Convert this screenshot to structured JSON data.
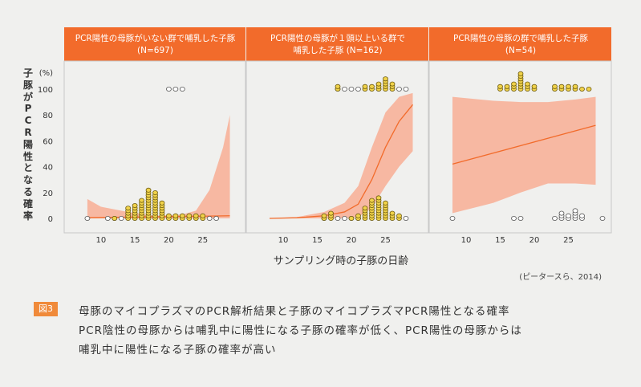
{
  "figure": {
    "ylabel_chars": [
      "子",
      "豚",
      "が",
      "P",
      "C",
      "R",
      "陽",
      "性",
      "と",
      "な",
      "る",
      "確",
      "率"
    ],
    "yunit": "(%)",
    "xtitle": "サンプリング時の子豚の日齢",
    "citation": "(ピータースら、2014)"
  },
  "colors": {
    "header_bg": "#f26b2b",
    "band": "#f7b8a2",
    "line": "#f26b2b",
    "dot_fill": "#f0d24a",
    "dot_stroke": "#6b5a10",
    "axis_frame": "#c8c8c8"
  },
  "chart_data": [
    {
      "type": "scatter",
      "title": "PCR陽性の母豚がいない群で哺乳した子豚",
      "subtitle": "(N=697)",
      "xlim": [
        6,
        30
      ],
      "ylim": [
        0,
        100
      ],
      "xticks": [
        10,
        15,
        20,
        25
      ],
      "yticks": [
        0,
        20,
        40,
        60,
        80,
        100
      ],
      "fitted_line": {
        "x": [
          8,
          29
        ],
        "y": [
          0.5,
          2
        ]
      },
      "confidence_band": {
        "x": [
          8,
          10,
          14,
          18,
          22,
          24,
          26,
          28,
          29
        ],
        "lower": [
          0,
          0,
          0,
          0,
          0,
          0,
          0,
          0,
          0
        ],
        "upper": [
          15,
          9,
          5,
          2,
          3,
          6,
          22,
          55,
          80
        ]
      },
      "dots_negative": [
        {
          "x": 8,
          "count": 1
        },
        {
          "x": 11,
          "count": 1
        },
        {
          "x": 12,
          "count": 1
        },
        {
          "x": 13,
          "count": 1
        },
        {
          "x": 26,
          "count": 1
        },
        {
          "x": 27,
          "count": 1
        }
      ],
      "dots_negative_top": [
        {
          "x": 20,
          "count": 1
        },
        {
          "x": 21,
          "count": 1
        },
        {
          "x": 22,
          "count": 1
        }
      ],
      "dots_positive": [
        {
          "x": 12,
          "count": 1
        },
        {
          "x": 14,
          "count": 5
        },
        {
          "x": 15,
          "count": 6
        },
        {
          "x": 16,
          "count": 8
        },
        {
          "x": 17,
          "count": 12
        },
        {
          "x": 18,
          "count": 11
        },
        {
          "x": 19,
          "count": 7
        },
        {
          "x": 20,
          "count": 2
        },
        {
          "x": 21,
          "count": 2
        },
        {
          "x": 22,
          "count": 2
        },
        {
          "x": 23,
          "count": 2
        },
        {
          "x": 24,
          "count": 2
        },
        {
          "x": 25,
          "count": 2
        }
      ]
    },
    {
      "type": "scatter",
      "title": "PCR陽性の母豚が１頭以上いる群で",
      "subtitle": "哺乳した子豚 (N=162)",
      "xlim": [
        6,
        30
      ],
      "ylim": [
        0,
        100
      ],
      "xticks": [
        10,
        15,
        20,
        25
      ],
      "yticks": [
        0,
        20,
        40,
        60,
        80,
        100
      ],
      "fitted_line": {
        "x": [
          8,
          12,
          16,
          19,
          21,
          23,
          25,
          27,
          29
        ],
        "y": [
          0,
          0.5,
          2,
          5,
          11,
          30,
          55,
          75,
          88
        ]
      },
      "confidence_band": {
        "x": [
          8,
          12,
          16,
          19,
          21,
          23,
          25,
          27,
          29
        ],
        "lower": [
          0,
          0,
          0,
          0,
          1,
          8,
          25,
          40,
          52
        ],
        "upper": [
          0,
          1,
          5,
          12,
          25,
          55,
          82,
          94,
          97
        ]
      },
      "dots_negative": [
        {
          "x": 16,
          "count": 1
        },
        {
          "x": 18,
          "count": 1
        },
        {
          "x": 19,
          "count": 1
        },
        {
          "x": 20,
          "count": 1
        },
        {
          "x": 21,
          "count": 1
        },
        {
          "x": 28,
          "count": 1
        }
      ],
      "dots_negative_top": [
        {
          "x": 18,
          "count": 1
        },
        {
          "x": 19,
          "count": 1
        },
        {
          "x": 20,
          "count": 1
        },
        {
          "x": 21,
          "count": 1
        },
        {
          "x": 24,
          "count": 1
        },
        {
          "x": 27,
          "count": 1
        },
        {
          "x": 28,
          "count": 1
        }
      ],
      "dots_positive": [
        {
          "x": 16,
          "count": 2
        },
        {
          "x": 17,
          "count": 3
        },
        {
          "x": 20,
          "count": 1
        },
        {
          "x": 21,
          "count": 2
        },
        {
          "x": 22,
          "count": 5
        },
        {
          "x": 23,
          "count": 8
        },
        {
          "x": 24,
          "count": 9
        },
        {
          "x": 25,
          "count": 7
        },
        {
          "x": 26,
          "count": 3
        },
        {
          "x": 27,
          "count": 2
        }
      ],
      "dots_positive_top": [
        {
          "x": 18,
          "count": 2
        },
        {
          "x": 22,
          "count": 2
        },
        {
          "x": 23,
          "count": 2
        },
        {
          "x": 24,
          "count": 3
        },
        {
          "x": 25,
          "count": 5
        },
        {
          "x": 26,
          "count": 3
        }
      ]
    },
    {
      "type": "scatter",
      "title": "PCR陽性の母豚の群で哺乳した子豚",
      "subtitle": "(N=54)",
      "xlim": [
        6,
        30
      ],
      "ylim": [
        0,
        100
      ],
      "xticks": [
        10,
        15,
        20,
        25
      ],
      "yticks": [
        0,
        20,
        40,
        60,
        80,
        100
      ],
      "fitted_line": {
        "x": [
          8,
          29
        ],
        "y": [
          42,
          72
        ]
      },
      "confidence_band": {
        "x": [
          8,
          14,
          18,
          22,
          26,
          29
        ],
        "lower": [
          4,
          12,
          20,
          27,
          27,
          26
        ],
        "upper": [
          94,
          91,
          90,
          90,
          92,
          94
        ]
      },
      "dots_negative": [
        {
          "x": 8,
          "count": 1
        },
        {
          "x": 17,
          "count": 1
        },
        {
          "x": 18,
          "count": 1
        },
        {
          "x": 23,
          "count": 1
        },
        {
          "x": 24,
          "count": 3
        },
        {
          "x": 25,
          "count": 2
        },
        {
          "x": 26,
          "count": 4
        },
        {
          "x": 27,
          "count": 2
        },
        {
          "x": 30,
          "count": 1
        }
      ],
      "dots_positive_top": [
        {
          "x": 15,
          "count": 2
        },
        {
          "x": 16,
          "count": 2
        },
        {
          "x": 17,
          "count": 3
        },
        {
          "x": 18,
          "count": 7
        },
        {
          "x": 19,
          "count": 3
        },
        {
          "x": 20,
          "count": 2
        },
        {
          "x": 23,
          "count": 2
        },
        {
          "x": 24,
          "count": 2
        },
        {
          "x": 25,
          "count": 2
        },
        {
          "x": 26,
          "count": 2
        },
        {
          "x": 27,
          "count": 1
        },
        {
          "x": 28,
          "count": 1
        }
      ]
    }
  ],
  "caption": {
    "badge": "図3",
    "line1": "母豚のマイコプラズマのPCR解析結果と子豚のマイコプラズマPCR陽性となる確率",
    "line2": "PCR陰性の母豚からは哺乳中に陽性になる子豚の確率が低く、PCR陽性の母豚からは",
    "line3": "哺乳中に陽性になる子豚の確率が高い"
  }
}
